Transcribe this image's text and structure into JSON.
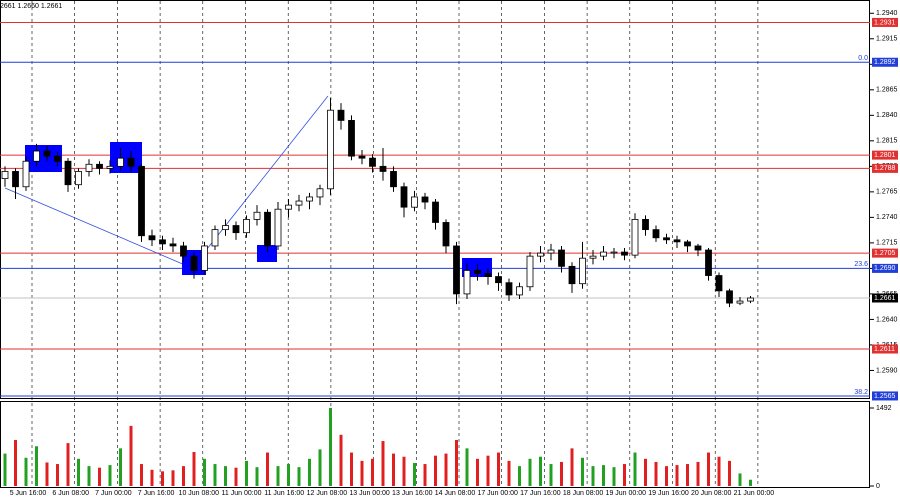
{
  "chart_data": {
    "type": "candlestick",
    "info": "2661 1.2660 1.2661",
    "ylim": [
      1.2563,
      1.2953
    ],
    "yticks": [
      {
        "value": 1.294,
        "label": "1.2940"
      },
      1.2915,
      {
        "value": 1.289,
        "label": "1.2890"
      },
      1.2865,
      {
        "value": 1.284,
        "label": "1.2840"
      },
      1.2815,
      {
        "value": 1.279,
        "label": "1.2790"
      },
      1.2765,
      {
        "value": 1.274,
        "label": "1.2740"
      },
      1.2715,
      {
        "value": 1.269,
        "label": "1.2690"
      },
      1.2665,
      {
        "value": 1.264,
        "label": "1.2640"
      },
      1.2615,
      {
        "value": 1.259,
        "label": "1.2590"
      }
    ],
    "up_color": "#ffffff",
    "down_color": "#000000",
    "candles": [
      [
        1.2778,
        1.279,
        1.277,
        1.2785
      ],
      [
        1.2785,
        1.2788,
        1.2758,
        1.277
      ],
      [
        1.277,
        1.28,
        1.2766,
        1.2795
      ],
      [
        1.2795,
        1.2812,
        1.279,
        1.2805
      ],
      [
        1.2805,
        1.281,
        1.2795,
        1.28
      ],
      [
        1.28,
        1.2804,
        1.279,
        1.2795
      ],
      [
        1.2795,
        1.2798,
        1.2765,
        1.2772
      ],
      [
        1.2772,
        1.2788,
        1.2768,
        1.2785
      ],
      [
        1.2785,
        1.2797,
        1.278,
        1.2792
      ],
      [
        1.2792,
        1.2795,
        1.2782,
        1.2788
      ],
      [
        1.2788,
        1.2796,
        1.2783,
        1.279
      ],
      [
        1.279,
        1.2808,
        1.2786,
        1.2798
      ],
      [
        1.2798,
        1.2805,
        1.2785,
        1.279
      ],
      [
        1.279,
        1.2792,
        1.2716,
        1.2722
      ],
      [
        1.2722,
        1.2728,
        1.2712,
        1.2718
      ],
      [
        1.2718,
        1.2722,
        1.2708,
        1.2714
      ],
      [
        1.2714,
        1.272,
        1.2706,
        1.2712
      ],
      [
        1.2712,
        1.2716,
        1.2696,
        1.2702
      ],
      [
        1.2702,
        1.2706,
        1.268,
        1.2688
      ],
      [
        1.2688,
        1.2716,
        1.2684,
        1.2712
      ],
      [
        1.2712,
        1.2732,
        1.2708,
        1.2728
      ],
      [
        1.2728,
        1.2738,
        1.2722,
        1.2732
      ],
      [
        1.2732,
        1.2736,
        1.2718,
        1.2725
      ],
      [
        1.2725,
        1.2742,
        1.272,
        1.2738
      ],
      [
        1.2738,
        1.2752,
        1.2732,
        1.2745
      ],
      [
        1.2745,
        1.2748,
        1.2706,
        1.2712
      ],
      [
        1.2712,
        1.2755,
        1.2708,
        1.2748
      ],
      [
        1.2748,
        1.2758,
        1.274,
        1.2752
      ],
      [
        1.2752,
        1.2762,
        1.2746,
        1.2756
      ],
      [
        1.2756,
        1.2764,
        1.2748,
        1.276
      ],
      [
        1.276,
        1.2772,
        1.2752,
        1.2768
      ],
      [
        1.2768,
        1.2857,
        1.2762,
        1.2845
      ],
      [
        1.2845,
        1.2852,
        1.2826,
        1.2835
      ],
      [
        1.2835,
        1.284,
        1.2796,
        1.28
      ],
      [
        1.28,
        1.2806,
        1.2792,
        1.2798
      ],
      [
        1.2798,
        1.2802,
        1.2784,
        1.279
      ],
      [
        1.279,
        1.2808,
        1.2776,
        1.2785
      ],
      [
        1.2785,
        1.279,
        1.2765,
        1.277
      ],
      [
        1.277,
        1.2774,
        1.274,
        1.275
      ],
      [
        1.275,
        1.2766,
        1.2746,
        1.276
      ],
      [
        1.276,
        1.2764,
        1.2748,
        1.2755
      ],
      [
        1.2755,
        1.2758,
        1.2728,
        1.2735
      ],
      [
        1.2735,
        1.2738,
        1.2705,
        1.2712
      ],
      [
        1.2712,
        1.2716,
        1.2655,
        1.2665
      ],
      [
        1.2665,
        1.2695,
        1.266,
        1.2688
      ],
      [
        1.2688,
        1.2694,
        1.2678,
        1.2685
      ],
      [
        1.2685,
        1.269,
        1.2674,
        1.2682
      ],
      [
        1.2682,
        1.2686,
        1.2668,
        1.2676
      ],
      [
        1.2676,
        1.268,
        1.2658,
        1.2664
      ],
      [
        1.2664,
        1.2676,
        1.266,
        1.2672
      ],
      [
        1.2672,
        1.2706,
        1.2668,
        1.2702
      ],
      [
        1.2702,
        1.2712,
        1.2696,
        1.2705
      ],
      [
        1.2705,
        1.2714,
        1.2698,
        1.2708
      ],
      [
        1.2708,
        1.2712,
        1.2686,
        1.2692
      ],
      [
        1.2692,
        1.2696,
        1.2666,
        1.2675
      ],
      [
        1.2675,
        1.2716,
        1.267,
        1.27
      ],
      [
        1.27,
        1.2708,
        1.2694,
        1.2702
      ],
      [
        1.2702,
        1.2712,
        1.2698,
        1.2706
      ],
      [
        1.2706,
        1.271,
        1.27,
        1.2706
      ],
      [
        1.2706,
        1.271,
        1.2698,
        1.2703
      ],
      [
        1.2703,
        1.2744,
        1.27,
        1.2738
      ],
      [
        1.2738,
        1.2742,
        1.2722,
        1.2728
      ],
      [
        1.2728,
        1.2732,
        1.2716,
        1.272
      ],
      [
        1.272,
        1.2724,
        1.2714,
        1.2718
      ],
      [
        1.2718,
        1.2722,
        1.271,
        1.2716
      ],
      [
        1.2716,
        1.2718,
        1.2706,
        1.2712
      ],
      [
        1.2712,
        1.2714,
        1.2702,
        1.2708
      ],
      [
        1.2708,
        1.271,
        1.2678,
        1.2683
      ],
      [
        1.2683,
        1.2686,
        1.2662,
        1.2668
      ],
      [
        1.2668,
        1.267,
        1.2652,
        1.2656
      ],
      [
        1.2656,
        1.2662,
        1.2654,
        1.2658
      ],
      [
        1.2658,
        1.2663,
        1.2656,
        1.2661
      ]
    ],
    "levels": [
      {
        "price": 1.2931,
        "color": "#e03030"
      },
      {
        "price": 1.2892,
        "color": "#1f3fd8",
        "fib_label": "0.0"
      },
      {
        "price": 1.2801,
        "color": "#e03030"
      },
      {
        "price": 1.2788,
        "color": "#e03030"
      },
      {
        "price": 1.2705,
        "color": "#e03030"
      },
      {
        "price": 1.269,
        "price_label": "1.2690",
        "color": "#1f3fd8",
        "fib_label": "23.6"
      },
      {
        "price": 1.2661,
        "color": "#000000",
        "line_color": "#c0c0c0"
      },
      {
        "price": 1.2611,
        "color": "#e03030"
      },
      {
        "price": 1.2565,
        "color": "#1f3fd8",
        "fib_label": "38.2"
      }
    ],
    "volumes": [
      620,
      880,
      540,
      760,
      450,
      420,
      820,
      520,
      380,
      350,
      400,
      720,
      1150,
      420,
      310,
      280,
      300,
      380,
      650,
      520,
      420,
      380,
      350,
      480,
      360,
      640,
      380,
      420,
      360,
      520,
      700,
      1492,
      980,
      640,
      480,
      520,
      860,
      620,
      560,
      440,
      420,
      580,
      620,
      880,
      720,
      520,
      580,
      640,
      480,
      380,
      520,
      560,
      420,
      460,
      720,
      540,
      380,
      400,
      360,
      420,
      640,
      520,
      460,
      380,
      400,
      420,
      460,
      640,
      560,
      480,
      240,
      120
    ],
    "volume_up_color": "#22a022",
    "volume_down_color": "#e02020",
    "vlim": [
      0,
      1492
    ],
    "vticks": [
      0,
      1492
    ],
    "xlabels": [
      "5 Jun 16:00",
      "6 Jun 08:00",
      "7 Jun 00:00",
      "7 Jun 16:00",
      "10 Jun 08:00",
      "11 Jun 00:00",
      "11 Jun 16:00",
      "12 Jun 08:00",
      "13 Jun 00:00",
      "13 Jun 16:00",
      "14 Jun 08:00",
      "17 Jun 00:00",
      "17 Jun 16:00",
      "18 Jun 08:00",
      "19 Jun 00:00",
      "19 Jun 16:00",
      "20 Jun 08:00",
      "21 Jun 00:00"
    ]
  }
}
